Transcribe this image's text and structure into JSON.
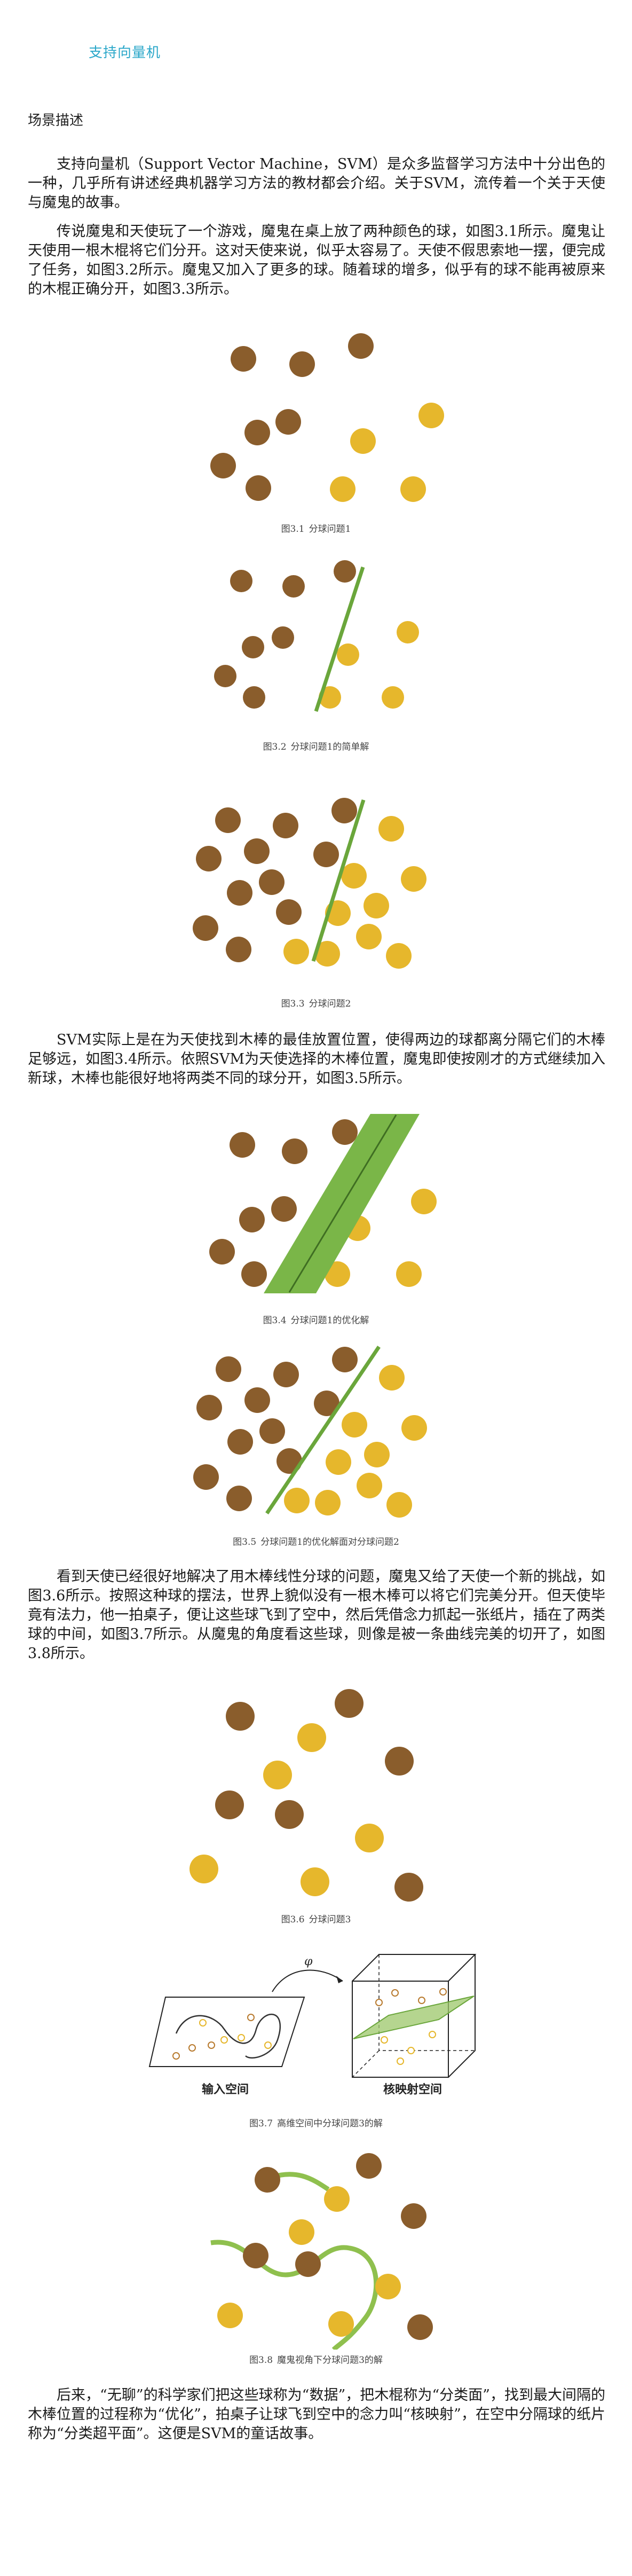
{
  "header": {
    "title": "支持向量机"
  },
  "section_title": "场景描述",
  "paragraphs": [
    "支持向量机（Support Vector Machine，SVM）是众多监督学习方法中十分出色的一种，几乎所有讲述经典机器学习方法的教材都会介绍。关于SVM，流传着一个关于天使与魔鬼的故事。",
    "传说魔鬼和天使玩了一个游戏，魔鬼在桌上放了两种颜色的球，如图3.1所示。魔鬼让天使用一根木棍将它们分开。这对天使来说，似乎太容易了。天使不假思索地一摆，便完成了任务，如图3.2所示。魔鬼又加入了更多的球。随着球的增多，似乎有的球不能再被原来的木棍正确分开，如图3.3所示。",
    "SVM实际上是在为天使找到木棒的最佳放置位置，使得两边的球都离分隔它们的木棒足够远，如图3.4所示。依照SVM为天使选择的木棒位置，魔鬼即使按刚才的方式继续加入新球，木棒也能很好地将两类不同的球分开，如图3.5所示。",
    "看到天使已经很好地解决了用木棒线性分球的问题，魔鬼又给了天使一个新的挑战，如图3.6所示。按照这种球的摆法，世界上貌似没有一根木棒可以将它们完美分开。但天使毕竟有法力，他一拍桌子，便让这些球飞到了空中，然后凭借念力抓起一张纸片，插在了两类球的中间，如图3.7所示。从魔鬼的角度看这些球，则像是被一条曲线完美的切开了，如图3.8所示。",
    "后来，“无聊”的科学家们把这些球称为“数据”，把木棍称为“分类面”，找到最大间隔的木棒位置的过程称为“优化”，拍桌子让球飞到空中的念力叫“核映射”，在空中分隔球的纸片称为“分类超平面”。这便是SVM的童话故事。"
  ],
  "figures": [
    {
      "num": "图3.1",
      "caption": "分球问题1"
    },
    {
      "num": "图3.2",
      "caption": "分球问题1的简单解"
    },
    {
      "num": "图3.3",
      "caption": "分球问题2"
    },
    {
      "num": "图3.4",
      "caption": "分球问题1的优化解"
    },
    {
      "num": "图3.5",
      "caption": "分球问题1的优化解面对分球问题2"
    },
    {
      "num": "图3.6",
      "caption": "分球问题3"
    },
    {
      "num": "图3.7",
      "caption": "高维空间中分球问题3的解"
    },
    {
      "num": "图3.8",
      "caption": "魔鬼视角下分球问题3的解"
    }
  ],
  "fig7_labels": {
    "phi": "φ",
    "input_space": "输入空间",
    "kernel_space": "核映射空间"
  },
  "colors": {
    "brown": "#8a5d2c",
    "yellow": "#e6b72c",
    "green": "#6aa63b",
    "title": "#2aa7c9"
  }
}
